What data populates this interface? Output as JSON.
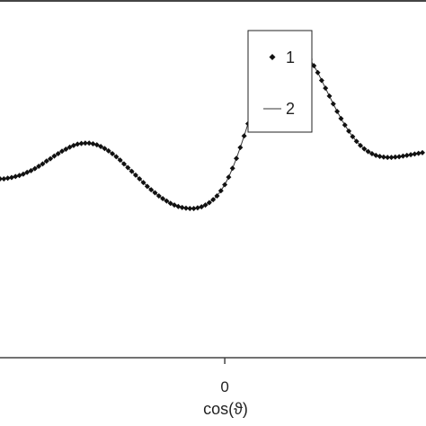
{
  "chart_data": {
    "type": "line",
    "title": "",
    "xlabel": "cos(ϑ)",
    "ylabel": "",
    "xlim": [
      -0.58,
      0.51
    ],
    "ylim": [
      0,
      1.05
    ],
    "x_ticks": [
      {
        "value": 0,
        "label": "0"
      }
    ],
    "grid": false,
    "legend": {
      "placement": "top-right"
    },
    "series": [
      {
        "name": "1",
        "style": "diamond-markers",
        "x": [
          -0.58,
          -0.57,
          -0.56,
          -0.55,
          -0.54,
          -0.53,
          -0.52,
          -0.51,
          -0.5,
          -0.49,
          -0.48,
          -0.47,
          -0.46,
          -0.45,
          -0.44,
          -0.43,
          -0.42,
          -0.41,
          -0.4,
          -0.39,
          -0.38,
          -0.37,
          -0.36,
          -0.35,
          -0.34,
          -0.33,
          -0.32,
          -0.31,
          -0.3,
          -0.29,
          -0.28,
          -0.27,
          -0.26,
          -0.25,
          -0.24,
          -0.23,
          -0.22,
          -0.21,
          -0.2,
          -0.19,
          -0.18,
          -0.17,
          -0.16,
          -0.15,
          -0.14,
          -0.13,
          -0.12,
          -0.11,
          -0.1,
          -0.09,
          -0.08,
          -0.07,
          -0.06,
          -0.05,
          -0.04,
          -0.03,
          -0.02,
          -0.01,
          0.0,
          0.01,
          0.02,
          0.03,
          0.04,
          0.05,
          0.06,
          0.07,
          0.08,
          0.09,
          0.1,
          0.11,
          0.12,
          0.13,
          0.14,
          0.15,
          0.16,
          0.17,
          0.18,
          0.19,
          0.2,
          0.21,
          0.22,
          0.23,
          0.24,
          0.25,
          0.26,
          0.27,
          0.28,
          0.29,
          0.3,
          0.31,
          0.32,
          0.33,
          0.34,
          0.35,
          0.36,
          0.37,
          0.38,
          0.39,
          0.4,
          0.41,
          0.42,
          0.43,
          0.44,
          0.45,
          0.46,
          0.47,
          0.48,
          0.49,
          0.5,
          0.51
        ],
        "y": [
          0.525,
          0.525,
          0.527,
          0.529,
          0.532,
          0.535,
          0.539,
          0.544,
          0.549,
          0.555,
          0.562,
          0.569,
          0.577,
          0.584,
          0.592,
          0.599,
          0.606,
          0.612,
          0.618,
          0.623,
          0.627,
          0.629,
          0.63,
          0.63,
          0.628,
          0.625,
          0.62,
          0.614,
          0.607,
          0.599,
          0.59,
          0.58,
          0.569,
          0.558,
          0.547,
          0.536,
          0.525,
          0.514,
          0.503,
          0.493,
          0.484,
          0.475,
          0.467,
          0.46,
          0.453,
          0.448,
          0.444,
          0.441,
          0.439,
          0.438,
          0.438,
          0.44,
          0.443,
          0.448,
          0.455,
          0.464,
          0.475,
          0.49,
          0.508,
          0.53,
          0.556,
          0.585,
          0.617,
          0.651,
          0.687,
          0.723,
          0.758,
          0.791,
          0.822,
          0.85,
          0.874,
          0.893,
          0.908,
          0.917,
          0.922,
          0.923,
          0.92,
          0.915,
          0.905,
          0.892,
          0.876,
          0.857,
          0.837,
          0.814,
          0.791,
          0.768,
          0.745,
          0.723,
          0.702,
          0.683,
          0.665,
          0.649,
          0.635,
          0.623,
          0.613,
          0.605,
          0.599,
          0.594,
          0.591,
          0.589,
          0.588,
          0.588,
          0.589,
          0.59,
          0.592,
          0.594,
          0.596,
          0.598,
          0.6,
          0.602
        ]
      },
      {
        "name": "2",
        "style": "thin-line"
      }
    ]
  }
}
